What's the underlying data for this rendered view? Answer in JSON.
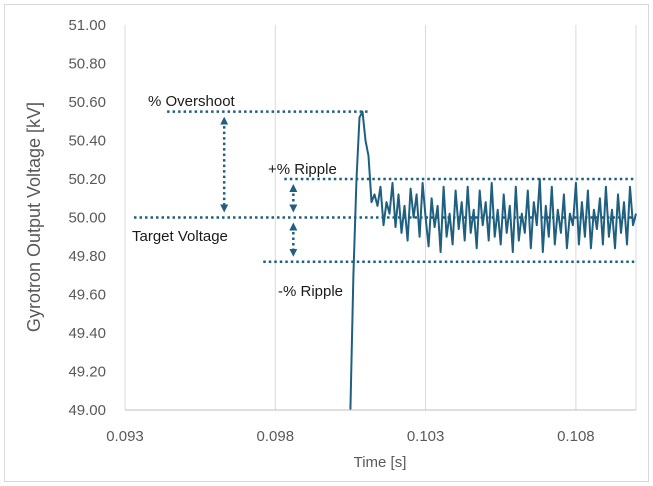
{
  "chart_data": {
    "type": "line",
    "title": "",
    "xlabel": "Time [s]",
    "ylabel": "Gyrotron Output Voltage [kV]",
    "xlim": [
      0.093,
      0.11
    ],
    "ylim": [
      49.0,
      51.0
    ],
    "x_ticks": [
      "0.093",
      "0.098",
      "0.103",
      "0.108"
    ],
    "y_ticks": [
      "49.00",
      "49.20",
      "49.40",
      "49.60",
      "49.80",
      "50.00",
      "50.20",
      "50.40",
      "50.60",
      "50.80",
      "51.00"
    ],
    "grid": "vertical",
    "legend": "none",
    "line_color": "#1f5f7f",
    "annotation_color": "#1f5f7f",
    "series": [
      {
        "x": [
          0.1005,
          0.1006,
          0.1007,
          0.1008,
          0.1009,
          0.101,
          0.1011,
          0.1012,
          0.1013,
          0.1014,
          0.1015,
          0.1016,
          0.1017,
          0.1018,
          0.1019,
          0.102,
          0.1021,
          0.1022,
          0.1023,
          0.1024,
          0.1025,
          0.1026,
          0.1027,
          0.1028,
          0.1029,
          0.103,
          0.1031,
          0.1032,
          0.1033,
          0.1034,
          0.1035,
          0.1036,
          0.1037,
          0.1038,
          0.1039,
          0.104,
          0.1041,
          0.1042,
          0.1043,
          0.1044,
          0.1045,
          0.1046,
          0.1047,
          0.1048,
          0.1049,
          0.105,
          0.1051,
          0.1052,
          0.1053,
          0.1054,
          0.1055,
          0.1056,
          0.1057,
          0.1058,
          0.1059,
          0.106,
          0.1061,
          0.1062,
          0.1063,
          0.1064,
          0.1065,
          0.1066,
          0.1067,
          0.1068,
          0.1069,
          0.107,
          0.1071,
          0.1072,
          0.1073,
          0.1074,
          0.1075,
          0.1076,
          0.1077,
          0.1078,
          0.1079,
          0.108,
          0.1081,
          0.1082,
          0.1083,
          0.1084,
          0.1085,
          0.1086,
          0.1087,
          0.1088,
          0.1089,
          0.109,
          0.1091,
          0.1092,
          0.1093,
          0.1094,
          0.1095,
          0.1096,
          0.1097,
          0.1098,
          0.1099,
          0.11
        ],
        "values": [
          49.0,
          49.7,
          50.2,
          50.52,
          50.55,
          50.4,
          50.32,
          50.08,
          50.12,
          50.06,
          50.16,
          49.96,
          50.08,
          50.02,
          50.18,
          49.95,
          50.12,
          49.92,
          50.06,
          49.88,
          50.15,
          50.0,
          50.12,
          49.9,
          50.18,
          50.0,
          49.85,
          50.1,
          49.95,
          50.06,
          49.82,
          50.16,
          49.9,
          50.02,
          49.86,
          50.14,
          49.94,
          50.08,
          49.88,
          50.16,
          49.92,
          50.04,
          49.84,
          50.14,
          49.96,
          50.08,
          49.88,
          50.18,
          49.9,
          50.04,
          49.86,
          50.12,
          49.92,
          50.06,
          49.82,
          50.16,
          49.88,
          50.02,
          49.92,
          50.14,
          49.84,
          50.08,
          49.96,
          50.2,
          49.82,
          50.06,
          49.9,
          50.16,
          49.86,
          50.04,
          49.92,
          50.12,
          49.84,
          50.02,
          49.96,
          50.18,
          49.86,
          50.08,
          49.9,
          50.14,
          49.84,
          50.04,
          49.94,
          50.1,
          49.86,
          50.16,
          49.9,
          50.04,
          49.84,
          50.12,
          49.92,
          50.08,
          49.86,
          50.16,
          49.96,
          50.02
        ]
      }
    ],
    "annotations": {
      "overshoot": {
        "label": "% Overshoot",
        "level": 50.55,
        "line_x_start": 0.0944,
        "line_x_end": 0.1011
      },
      "target": {
        "label": "Target Voltage",
        "level": 50.0,
        "line_x_start": 0.0933,
        "line_x_end": 0.11
      },
      "ripple_plus": {
        "label": "+% Ripple",
        "level": 50.2,
        "line_x_start": 0.0983,
        "line_x_end": 0.11
      },
      "ripple_minus": {
        "label": "-% Ripple",
        "level": 49.77,
        "line_x_start": 0.0976,
        "line_x_end": 0.11
      },
      "overshoot_arrow_x": 0.0963,
      "ripple_arrow_x": 0.0986
    }
  }
}
